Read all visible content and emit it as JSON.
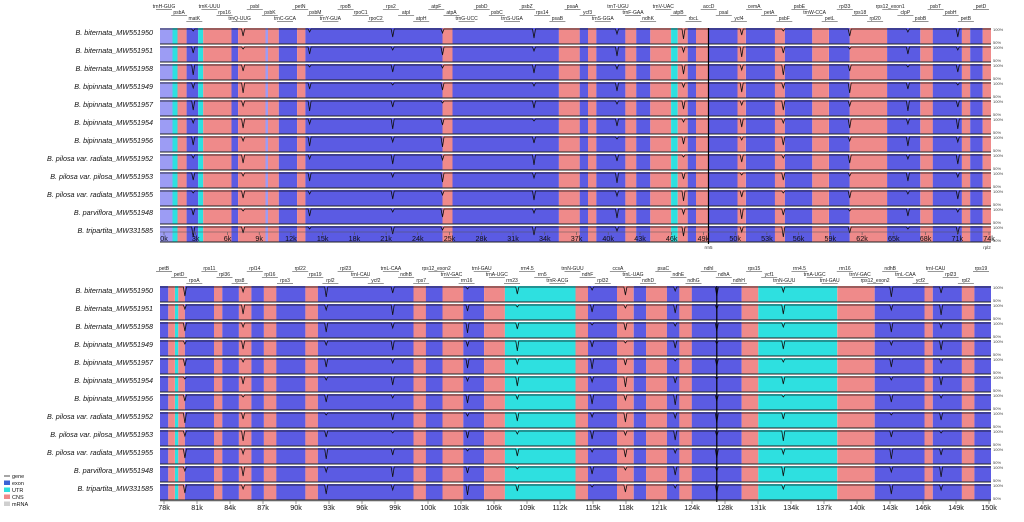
{
  "samples": [
    "B. biternata_MW551950",
    "B. biternata_MW551951",
    "B. biternata_MW551958",
    "B. bipinnata_MW551949",
    "B. bipinnata_MW551957",
    "B. bipinnata_MW551954",
    "B. bipinnata_MW551956",
    "B. pilosa var. radiata_MW551952",
    "B. pilosa var. pilosa_MW551953",
    "B. pilosa var. radiata_MW551955",
    "B. parviflora_MW551948",
    "B. tripartita_MW331585"
  ],
  "y_scale": {
    "top": "100%",
    "bottom": "50%"
  },
  "colors": {
    "gene": "#9c9cf4",
    "exon": "#5b5be3",
    "utr": "#2ee0e0",
    "cns": "#ef8a8a",
    "mrna": "#cfcfcf"
  },
  "legend": [
    {
      "key": "gene",
      "label": "gene",
      "color": "#888888",
      "swatch": "arrow"
    },
    {
      "key": "exon",
      "label": "exon",
      "color": "#3a62d6",
      "swatch": "box"
    },
    {
      "key": "utr",
      "label": "UTR",
      "color": "#2ee0e0",
      "swatch": "box"
    },
    {
      "key": "cns",
      "label": "CNS",
      "color": "#ef8a8a",
      "swatch": "box"
    },
    {
      "key": "mrna",
      "label": "mRNA",
      "color": "#cfcfcf",
      "swatch": "box"
    }
  ],
  "panels": [
    {
      "id": "top",
      "axis_ticks": [
        "0k",
        "3k",
        "6k",
        "9k",
        "12k",
        "15k",
        "18k",
        "21k",
        "24k",
        "25k",
        "28k",
        "31k",
        "34k",
        "37k",
        "40k",
        "43k",
        "46k",
        "49k",
        "50k",
        "53k",
        "56k",
        "59k",
        "62k",
        "65k",
        "68k",
        "71k",
        "74k"
      ],
      "axis_subnotes": [
        "rrn5",
        "rpl2"
      ],
      "gene_labels": [
        "trnH-GUG",
        "psbA",
        "matK",
        "trnK-UUU",
        "rps16",
        "trnQ-UUG",
        "psbI",
        "psbK",
        "trnC-GCA",
        "petN",
        "psbM",
        "trnY-GUA",
        "rpoB",
        "rpoC1",
        "rpoC2",
        "rps2",
        "atpI",
        "atpH",
        "atpF",
        "atpA",
        "trnG-UCC",
        "psbD",
        "psbC",
        "trnS-UGA",
        "psbZ",
        "rps14",
        "psaB",
        "psaA",
        "ycf3",
        "trnS-GGA",
        "trnT-UGU",
        "trnF-GAA",
        "ndhK",
        "trnV-UAC",
        "atpB",
        "rbcL",
        "accD",
        "psaI",
        "ycf4",
        "cemA",
        "petA",
        "psbF",
        "psbE",
        "trnW-CCA",
        "petL",
        "rpl33",
        "rps18",
        "rpl20",
        "rps12_exon1",
        "clpP",
        "psbB",
        "psbT",
        "psbH",
        "petB",
        "petD"
      ],
      "regions": [
        [
          "gene",
          0,
          1.5
        ],
        [
          "utr",
          1.5,
          2.1
        ],
        [
          "cns",
          2.1,
          3.2
        ],
        [
          "exon",
          3.2,
          4.6
        ],
        [
          "utr",
          4.6,
          5.2
        ],
        [
          "cns",
          5.2,
          8.6
        ],
        [
          "exon",
          8.6,
          9.4
        ],
        [
          "cns",
          9.4,
          12.7
        ],
        [
          "gene",
          12.7,
          13.0
        ],
        [
          "cns",
          13.0,
          14.3
        ],
        [
          "exon",
          14.3,
          16.5
        ],
        [
          "cns",
          16.5,
          17.5
        ],
        [
          "exon",
          17.5,
          34.0
        ],
        [
          "cns",
          34.0,
          35.2
        ],
        [
          "exon",
          35.2,
          48.0
        ],
        [
          "cns",
          48.0,
          50.5
        ],
        [
          "exon",
          50.5,
          51.5
        ],
        [
          "cns",
          51.5,
          52.5
        ],
        [
          "exon",
          52.5,
          56.0
        ],
        [
          "cns",
          56.0,
          57.3
        ],
        [
          "exon",
          57.3,
          59.0
        ],
        [
          "cns",
          59.0,
          61.5
        ],
        [
          "utr",
          61.5,
          62.3
        ],
        [
          "cns",
          62.3,
          63.5
        ],
        [
          "exon",
          63.5,
          64.5
        ],
        [
          "cns",
          64.5,
          66.0
        ],
        [
          "exon",
          66.0,
          69.5
        ],
        [
          "cns",
          69.5,
          70.5
        ],
        [
          "exon",
          70.5,
          74.0
        ],
        [
          "cns",
          74.0,
          75.2
        ],
        [
          "exon",
          75.2,
          78.5
        ],
        [
          "cns",
          78.5,
          80.5
        ],
        [
          "exon",
          80.5,
          83.0
        ],
        [
          "cns",
          83.0,
          87.5
        ],
        [
          "exon",
          87.5,
          91.5
        ],
        [
          "cns",
          91.5,
          93.0
        ],
        [
          "exon",
          93.0,
          96.5
        ],
        [
          "cns",
          96.5,
          97.5
        ],
        [
          "exon",
          97.5,
          99.0
        ],
        [
          "cns",
          99.0,
          100.0
        ]
      ],
      "dips": [
        4,
        10,
        18,
        28,
        34,
        45,
        55,
        63,
        70,
        75,
        83,
        90,
        96
      ]
    },
    {
      "id": "bottom",
      "axis_ticks": [
        "78k",
        "81k",
        "84k",
        "87k",
        "90k",
        "93k",
        "96k",
        "99k",
        "100k",
        "103k",
        "106k",
        "109k",
        "112k",
        "115k",
        "118k",
        "121k",
        "124k",
        "128k",
        "131k",
        "134k",
        "137k",
        "140k",
        "143k",
        "146k",
        "149k",
        "150k"
      ],
      "axis_subnotes": [],
      "gene_labels": [
        "petB",
        "petD",
        "rpoA",
        "rps11",
        "rpl36",
        "rps8",
        "rpl14",
        "rpl16",
        "rps3",
        "rpl22",
        "rps19",
        "rpl2",
        "rpl23",
        "trnI-CAU",
        "ycf2",
        "trnL-CAA",
        "ndhB",
        "rps7",
        "rps12_exon2",
        "trnV-GAC",
        "rrn16",
        "trnI-GAU",
        "trnA-UGC",
        "rrn23",
        "rrn4.5",
        "rrn5",
        "trnR-ACG",
        "trnN-GUU",
        "ndhF",
        "rpl32",
        "ccsA",
        "trnL-UAG",
        "ndhD",
        "psaC",
        "ndhE",
        "ndhG",
        "ndhI",
        "ndhA",
        "ndhH",
        "rps15",
        "ycf1",
        "trnN-GUU",
        "rrn4.5",
        "trnA-UGC",
        "trnI-GAU",
        "rrn16",
        "trnV-GAC",
        "rps12_exon2",
        "ndhB",
        "trnL-CAA",
        "ycf2",
        "trnI-CAU",
        "rpl23",
        "rpl2",
        "rps19"
      ],
      "regions": [
        [
          "exon",
          0,
          1.0
        ],
        [
          "cns",
          1.0,
          1.8
        ],
        [
          "utr",
          1.8,
          2.2
        ],
        [
          "cns",
          2.2,
          3.0
        ],
        [
          "exon",
          3.0,
          6.5
        ],
        [
          "cns",
          6.5,
          7.5
        ],
        [
          "exon",
          7.5,
          9.5
        ],
        [
          "cns",
          9.5,
          11.0
        ],
        [
          "exon",
          11.0,
          12.5
        ],
        [
          "cns",
          12.5,
          14.0
        ],
        [
          "exon",
          14.0,
          17.5
        ],
        [
          "cns",
          17.5,
          19.0
        ],
        [
          "exon",
          19.0,
          30.5
        ],
        [
          "cns",
          30.5,
          32.0
        ],
        [
          "exon",
          32.0,
          34.0
        ],
        [
          "cns",
          34.0,
          36.5
        ],
        [
          "exon",
          36.5,
          39.0
        ],
        [
          "cns",
          39.0,
          41.5
        ],
        [
          "utr",
          41.5,
          50.0
        ],
        [
          "cns",
          50.0,
          51.5
        ],
        [
          "exon",
          51.5,
          55.0
        ],
        [
          "cns",
          55.0,
          57.0
        ],
        [
          "exon",
          57.0,
          58.5
        ],
        [
          "cns",
          58.5,
          61.0
        ],
        [
          "exon",
          61.0,
          62.5
        ],
        [
          "cns",
          62.5,
          64.0
        ],
        [
          "exon",
          64.0,
          70.0
        ],
        [
          "cns",
          70.0,
          72.0
        ],
        [
          "utr",
          72.0,
          81.5
        ],
        [
          "cns",
          81.5,
          86.0
        ],
        [
          "exon",
          86.0,
          92.0
        ],
        [
          "cns",
          92.0,
          93.0
        ],
        [
          "exon",
          93.0,
          96.5
        ],
        [
          "cns",
          96.5,
          98.0
        ],
        [
          "exon",
          98.0,
          100.0
        ]
      ],
      "dips": [
        3,
        10,
        20,
        28,
        37,
        43,
        52,
        56,
        62,
        67,
        75,
        88,
        94
      ]
    }
  ]
}
